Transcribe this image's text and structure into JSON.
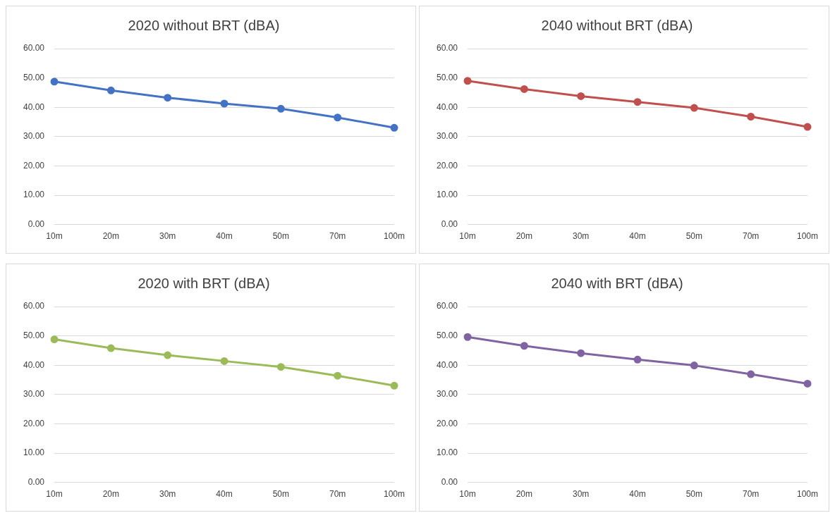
{
  "chart_data": [
    {
      "type": "line",
      "title": "2020 without BRT (dBA)",
      "categories": [
        "10m",
        "20m",
        "30m",
        "40m",
        "50m",
        "70m",
        "100m"
      ],
      "series": [
        {
          "color": "#4472c4",
          "values": [
            48.75,
            45.75,
            43.25,
            41.25,
            39.5,
            36.5,
            33
          ]
        }
      ],
      "ylim": [
        0,
        60
      ],
      "yticks": [
        {
          "value": 0,
          "label": "0.00"
        },
        {
          "value": 10,
          "label": "10.00"
        },
        {
          "value": 20,
          "label": "20.00"
        },
        {
          "value": 30,
          "label": "30.00"
        },
        {
          "value": 40,
          "label": "40.00"
        },
        {
          "value": 50,
          "label": "50.00"
        },
        {
          "value": 60,
          "label": "60.00"
        }
      ],
      "grid": "y",
      "marker": "circle",
      "legend": false
    },
    {
      "type": "line",
      "title": "2040 without BRT (dBA)",
      "categories": [
        "10m",
        "20m",
        "30m",
        "40m",
        "50m",
        "70m",
        "100m"
      ],
      "series": [
        {
          "color": "#c0504d",
          "values": [
            49,
            46.2,
            43.8,
            41.8,
            39.8,
            36.8,
            33.3
          ]
        }
      ],
      "ylim": [
        0,
        60
      ],
      "yticks": [
        {
          "value": 0,
          "label": "0.00"
        },
        {
          "value": 10,
          "label": "10.00"
        },
        {
          "value": 20,
          "label": "20.00"
        },
        {
          "value": 30,
          "label": "30.00"
        },
        {
          "value": 40,
          "label": "40.00"
        },
        {
          "value": 50,
          "label": "50.00"
        },
        {
          "value": 60,
          "label": "60.00"
        }
      ],
      "grid": "y",
      "marker": "circle",
      "legend": false
    },
    {
      "type": "line",
      "title": "2020 with BRT (dBA)",
      "categories": [
        "10m",
        "20m",
        "30m",
        "40m",
        "50m",
        "70m",
        "100m"
      ],
      "series": [
        {
          "color": "#9bbb59",
          "values": [
            48.8,
            45.8,
            43.4,
            41.4,
            39.4,
            36.4,
            33
          ]
        }
      ],
      "ylim": [
        0,
        60
      ],
      "yticks": [
        {
          "value": 0,
          "label": "0.00"
        },
        {
          "value": 10,
          "label": "10.00"
        },
        {
          "value": 20,
          "label": "20.00"
        },
        {
          "value": 30,
          "label": "30.00"
        },
        {
          "value": 40,
          "label": "40.00"
        },
        {
          "value": 50,
          "label": "50.00"
        },
        {
          "value": 60,
          "label": "60.00"
        }
      ],
      "grid": "y",
      "marker": "circle",
      "legend": false
    },
    {
      "type": "line",
      "title": "2040 with BRT (dBA)",
      "categories": [
        "10m",
        "20m",
        "30m",
        "40m",
        "50m",
        "70m",
        "100m"
      ],
      "series": [
        {
          "color": "#8064a2",
          "values": [
            49.6,
            46.6,
            44.1,
            41.9,
            39.9,
            36.9,
            33.7
          ]
        }
      ],
      "ylim": [
        0,
        60
      ],
      "yticks": [
        {
          "value": 0,
          "label": "0.00"
        },
        {
          "value": 10,
          "label": "10.00"
        },
        {
          "value": 20,
          "label": "20.00"
        },
        {
          "value": 30,
          "label": "30.00"
        },
        {
          "value": 40,
          "label": "40.00"
        },
        {
          "value": 50,
          "label": "50.00"
        },
        {
          "value": 60,
          "label": "60.00"
        }
      ],
      "grid": "y",
      "marker": "circle",
      "legend": false
    }
  ]
}
